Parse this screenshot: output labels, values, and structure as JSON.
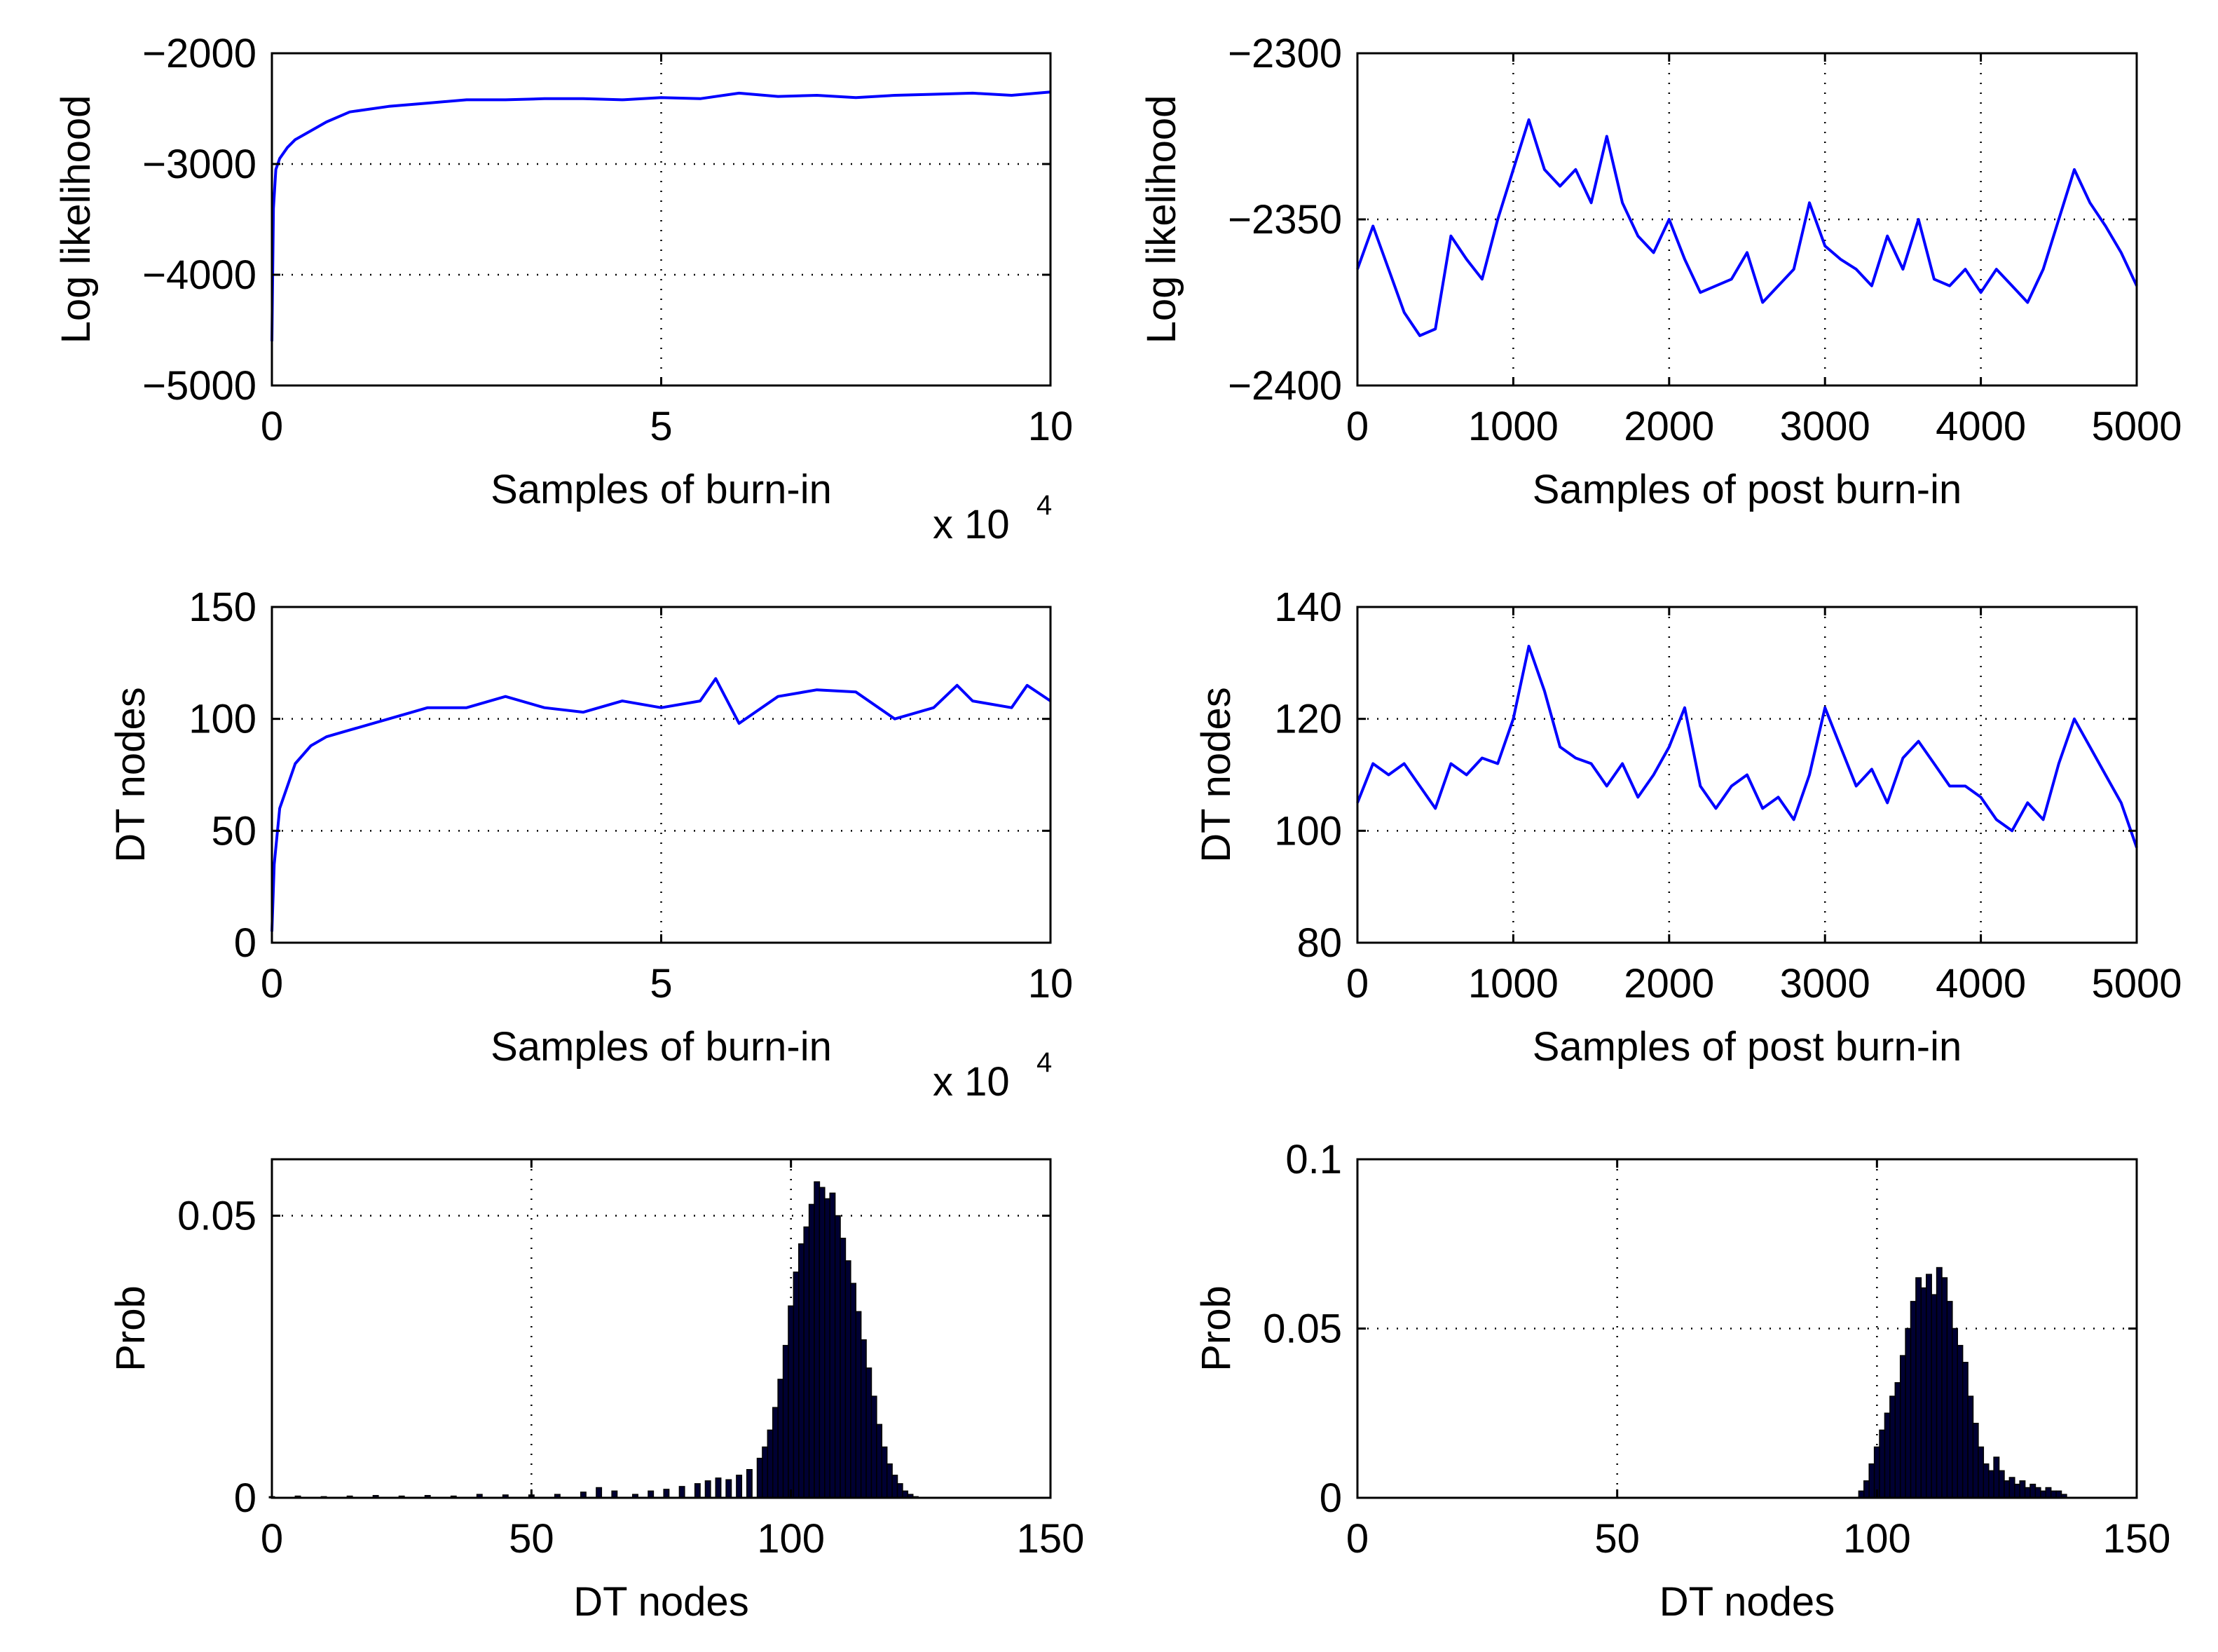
{
  "figure": {
    "panel_count": 6
  },
  "chart_data": [
    {
      "id": "p1",
      "type": "line",
      "title": "",
      "xlabel": "Samples of burn-in",
      "ylabel": "Log likelihood",
      "xlim": [
        0,
        10
      ],
      "ylim": [
        -5000,
        -2000
      ],
      "xticks": [
        0,
        5,
        10
      ],
      "xtick_labels": [
        "0",
        "5",
        "10"
      ],
      "yticks": [
        -5000,
        -4000,
        -3000,
        -2000
      ],
      "ytick_labels": [
        "−5000",
        "−4000",
        "−3000",
        "−2000"
      ],
      "x_multiplier": "x 10",
      "x_multiplier_exp": "4",
      "grid": true,
      "color": "#0000ff",
      "series": [
        {
          "name": "log likelihood (burn-in)",
          "x": [
            0,
            0.02,
            0.05,
            0.1,
            0.2,
            0.3,
            0.5,
            0.7,
            1.0,
            1.5,
            2.0,
            2.5,
            3.0,
            3.5,
            4.0,
            4.5,
            5.0,
            5.5,
            6.0,
            6.5,
            7.0,
            7.5,
            8.0,
            8.5,
            9.0,
            9.5,
            10.0
          ],
          "y": [
            -4600,
            -3400,
            -3050,
            -2950,
            -2850,
            -2780,
            -2700,
            -2620,
            -2530,
            -2480,
            -2450,
            -2420,
            -2420,
            -2410,
            -2410,
            -2420,
            -2400,
            -2410,
            -2360,
            -2390,
            -2380,
            -2400,
            -2380,
            -2370,
            -2360,
            -2380,
            -2350
          ]
        }
      ]
    },
    {
      "id": "p2",
      "type": "line",
      "title": "",
      "xlabel": "Samples of post burn-in",
      "ylabel": "Log likelihood",
      "xlim": [
        0,
        5000
      ],
      "ylim": [
        -2400,
        -2300
      ],
      "xticks": [
        0,
        1000,
        2000,
        3000,
        4000,
        5000
      ],
      "xtick_labels": [
        "0",
        "1000",
        "2000",
        "3000",
        "4000",
        "5000"
      ],
      "yticks": [
        -2400,
        -2350,
        -2300
      ],
      "ytick_labels": [
        "−2400",
        "−2350",
        "−2300"
      ],
      "grid": true,
      "color": "#0000ff",
      "series": [
        {
          "name": "log likelihood (post burn-in)",
          "x": [
            0,
            100,
            200,
            300,
            400,
            500,
            600,
            700,
            800,
            900,
            1000,
            1100,
            1200,
            1300,
            1400,
            1500,
            1600,
            1700,
            1800,
            1900,
            2000,
            2100,
            2200,
            2300,
            2400,
            2500,
            2600,
            2700,
            2800,
            2900,
            3000,
            3100,
            3200,
            3300,
            3400,
            3500,
            3600,
            3700,
            3800,
            3900,
            4000,
            4100,
            4200,
            4300,
            4400,
            4500,
            4600,
            4700,
            4800,
            4900,
            5000
          ],
          "y": [
            -2365,
            -2352,
            -2365,
            -2378,
            -2385,
            -2383,
            -2355,
            -2362,
            -2368,
            -2350,
            -2335,
            -2320,
            -2335,
            -2340,
            -2335,
            -2345,
            -2325,
            -2345,
            -2355,
            -2360,
            -2350,
            -2362,
            -2372,
            -2370,
            -2368,
            -2360,
            -2375,
            -2370,
            -2365,
            -2345,
            -2358,
            -2362,
            -2365,
            -2370,
            -2355,
            -2365,
            -2350,
            -2368,
            -2370,
            -2365,
            -2372,
            -2365,
            -2370,
            -2375,
            -2365,
            -2350,
            -2335,
            -2345,
            -2352,
            -2360,
            -2370
          ]
        }
      ]
    },
    {
      "id": "p3",
      "type": "line",
      "title": "",
      "xlabel": "Samples of burn-in",
      "ylabel": "DT nodes",
      "xlim": [
        0,
        10
      ],
      "ylim": [
        0,
        150
      ],
      "xticks": [
        0,
        5,
        10
      ],
      "xtick_labels": [
        "0",
        "5",
        "10"
      ],
      "yticks": [
        0,
        50,
        100,
        150
      ],
      "ytick_labels": [
        "0",
        "50",
        "100",
        "150"
      ],
      "x_multiplier": "x 10",
      "x_multiplier_exp": "4",
      "grid": true,
      "color": "#0000ff",
      "series": [
        {
          "name": "DT nodes (burn-in)",
          "x": [
            0,
            0.03,
            0.1,
            0.2,
            0.3,
            0.5,
            0.7,
            1.0,
            1.5,
            2.0,
            2.5,
            3.0,
            3.5,
            4.0,
            4.5,
            5.0,
            5.5,
            5.7,
            6.0,
            6.5,
            7.0,
            7.5,
            8.0,
            8.5,
            8.8,
            9.0,
            9.5,
            9.7,
            10.0
          ],
          "y": [
            5,
            35,
            60,
            70,
            80,
            88,
            92,
            95,
            100,
            105,
            105,
            110,
            105,
            103,
            108,
            105,
            108,
            118,
            98,
            110,
            113,
            112,
            100,
            105,
            115,
            108,
            105,
            115,
            108
          ]
        }
      ]
    },
    {
      "id": "p4",
      "type": "line",
      "title": "",
      "xlabel": "Samples of post burn-in",
      "ylabel": "DT nodes",
      "xlim": [
        0,
        5000
      ],
      "ylim": [
        80,
        140
      ],
      "xticks": [
        0,
        1000,
        2000,
        3000,
        4000,
        5000
      ],
      "xtick_labels": [
        "0",
        "1000",
        "2000",
        "3000",
        "4000",
        "5000"
      ],
      "yticks": [
        80,
        100,
        120,
        140
      ],
      "ytick_labels": [
        "80",
        "100",
        "120",
        "140"
      ],
      "grid": true,
      "color": "#0000ff",
      "series": [
        {
          "name": "DT nodes (post burn-in)",
          "x": [
            0,
            100,
            200,
            300,
            400,
            500,
            600,
            700,
            800,
            900,
            1000,
            1100,
            1200,
            1300,
            1400,
            1500,
            1600,
            1700,
            1800,
            1900,
            2000,
            2100,
            2200,
            2300,
            2400,
            2500,
            2600,
            2700,
            2800,
            2900,
            3000,
            3100,
            3200,
            3300,
            3400,
            3500,
            3600,
            3700,
            3800,
            3900,
            4000,
            4100,
            4200,
            4300,
            4400,
            4500,
            4600,
            4700,
            4800,
            4900,
            5000
          ],
          "y": [
            105,
            112,
            110,
            112,
            108,
            104,
            112,
            110,
            113,
            112,
            120,
            133,
            125,
            115,
            113,
            112,
            108,
            112,
            106,
            110,
            115,
            122,
            108,
            104,
            108,
            110,
            104,
            106,
            102,
            110,
            122,
            115,
            108,
            111,
            105,
            113,
            116,
            112,
            108,
            108,
            106,
            102,
            100,
            105,
            102,
            112,
            120,
            115,
            110,
            105,
            97
          ]
        }
      ]
    },
    {
      "id": "p5",
      "type": "bar",
      "title": "",
      "xlabel": "DT nodes",
      "ylabel": "Prob",
      "xlim": [
        0,
        150
      ],
      "ylim": [
        0,
        0.06
      ],
      "xticks": [
        0,
        50,
        100,
        150
      ],
      "xtick_labels": [
        "0",
        "50",
        "100",
        "150"
      ],
      "yticks": [
        0,
        0.05
      ],
      "ytick_labels": [
        "0",
        "0.05"
      ],
      "grid": true,
      "color": "#000033",
      "x": [
        0,
        5,
        10,
        15,
        20,
        25,
        30,
        35,
        40,
        45,
        50,
        55,
        60,
        63,
        66,
        70,
        73,
        76,
        79,
        82,
        84,
        86,
        88,
        90,
        92,
        94,
        95,
        96,
        97,
        98,
        99,
        100,
        101,
        102,
        103,
        104,
        105,
        106,
        107,
        108,
        109,
        110,
        111,
        112,
        113,
        114,
        115,
        116,
        117,
        118,
        119,
        120,
        121,
        122,
        123,
        124
      ],
      "values": [
        0.0002,
        0.0003,
        0.0002,
        0.0003,
        0.0004,
        0.0003,
        0.0004,
        0.0003,
        0.0006,
        0.0005,
        0.0005,
        0.0006,
        0.001,
        0.0018,
        0.0012,
        0.0006,
        0.0012,
        0.0015,
        0.002,
        0.0025,
        0.003,
        0.0035,
        0.0032,
        0.004,
        0.005,
        0.007,
        0.009,
        0.012,
        0.016,
        0.021,
        0.027,
        0.034,
        0.04,
        0.045,
        0.048,
        0.052,
        0.056,
        0.055,
        0.053,
        0.054,
        0.05,
        0.046,
        0.042,
        0.038,
        0.033,
        0.028,
        0.023,
        0.018,
        0.013,
        0.009,
        0.006,
        0.004,
        0.0025,
        0.0012,
        0.0006,
        0.0002
      ]
    },
    {
      "id": "p6",
      "type": "bar",
      "title": "",
      "xlabel": "DT nodes",
      "ylabel": "Prob",
      "xlim": [
        0,
        150
      ],
      "ylim": [
        0,
        0.1
      ],
      "xticks": [
        0,
        50,
        100,
        150
      ],
      "xtick_labels": [
        "0",
        "50",
        "100",
        "150"
      ],
      "yticks": [
        0,
        0.05,
        0.1
      ],
      "ytick_labels": [
        "0",
        "0.05",
        "0.1"
      ],
      "grid": true,
      "color": "#000033",
      "x": [
        97,
        98,
        99,
        100,
        101,
        102,
        103,
        104,
        105,
        106,
        107,
        108,
        109,
        110,
        111,
        112,
        113,
        114,
        115,
        116,
        117,
        118,
        119,
        120,
        121,
        122,
        123,
        124,
        125,
        126,
        127,
        128,
        129,
        130,
        131,
        132,
        133,
        134,
        135,
        136
      ],
      "values": [
        0.002,
        0.005,
        0.01,
        0.015,
        0.02,
        0.025,
        0.03,
        0.034,
        0.042,
        0.05,
        0.058,
        0.065,
        0.062,
        0.066,
        0.06,
        0.068,
        0.065,
        0.058,
        0.05,
        0.045,
        0.04,
        0.03,
        0.022,
        0.015,
        0.01,
        0.008,
        0.012,
        0.008,
        0.005,
        0.006,
        0.004,
        0.005,
        0.003,
        0.004,
        0.003,
        0.002,
        0.003,
        0.002,
        0.002,
        0.001
      ]
    }
  ]
}
